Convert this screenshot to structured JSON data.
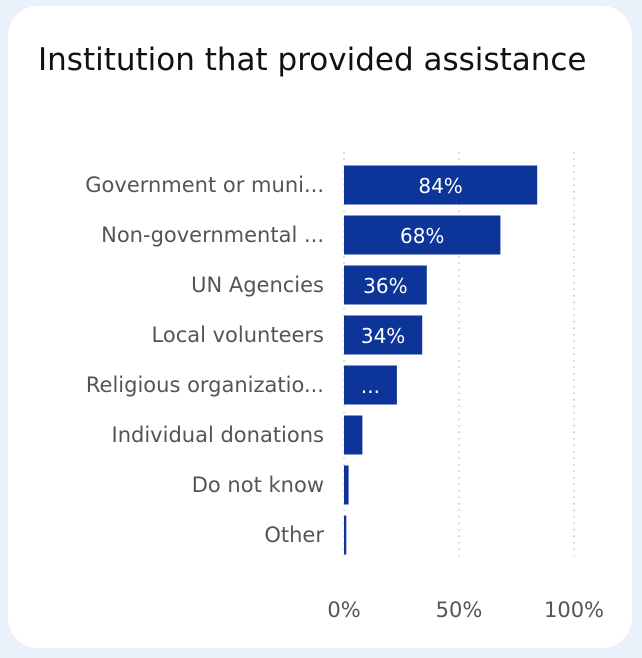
{
  "colors": {
    "background": "#e9f1fb",
    "card": "#ffffff",
    "bar": "#0d3499",
    "grid": "#c8c8c8",
    "text": "#555555",
    "title": "#111111"
  },
  "chart_data": {
    "type": "bar",
    "orientation": "horizontal",
    "title": "Institution that provided assistance",
    "categories": [
      "Government or muni...",
      "Non-governmental ...",
      "UN Agencies",
      "Local volunteers",
      "Religious organizatio...",
      "Individual donations",
      "Do not know",
      "Other"
    ],
    "values": [
      84,
      68,
      36,
      34,
      23,
      8,
      2,
      1
    ],
    "data_labels": [
      "84%",
      "68%",
      "36%",
      "34%",
      "...",
      "",
      "",
      ""
    ],
    "xlim": [
      0,
      100
    ],
    "x_ticks": [
      0,
      50,
      100
    ],
    "x_tick_labels": [
      "0%",
      "50%",
      "100%"
    ],
    "grid": true,
    "legend": "none"
  }
}
